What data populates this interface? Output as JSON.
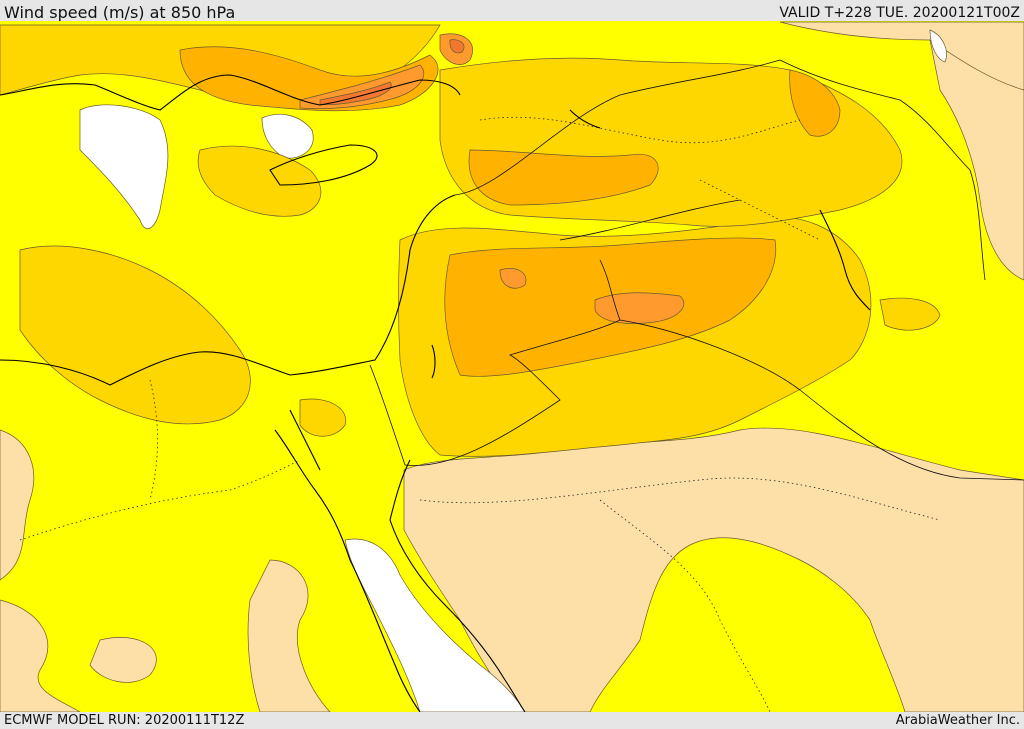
{
  "header": {
    "title": "Wind speed (m/s) at 850 hPa",
    "valid": "VALID T+228 TUE. 20200121T00Z"
  },
  "footer": {
    "model_run": "ECMWF MODEL RUN: 20200111T12Z",
    "credit": "ArabiaWeather Inc."
  },
  "legend_colors": {
    "calm": "#ffffff",
    "light": "#fde0a8",
    "moderate": "#ffff00",
    "fresh": "#ffd700",
    "strong": "#ffb300",
    "very_strong": "#ff9a2e",
    "gale": "#f07830"
  }
}
